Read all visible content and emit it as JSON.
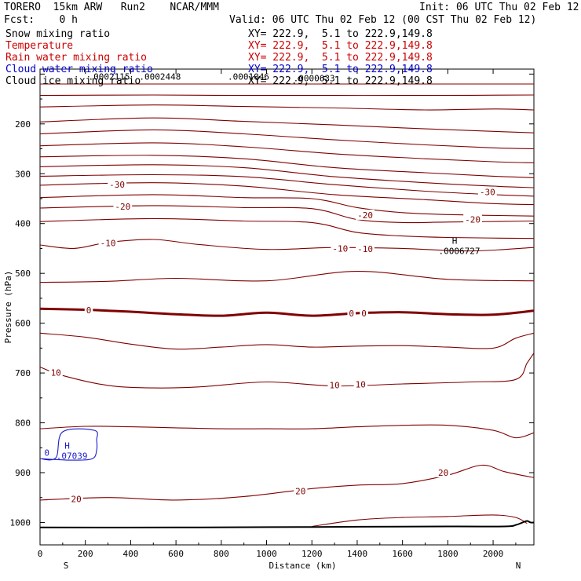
{
  "header": {
    "model": "TORERO  15km ARW   Run2    NCAR/MMM",
    "init": "Init: 06 UTC Thu 02 Feb 12",
    "fcst": "Fcst:    0 h",
    "valid": "Valid: 06 UTC Thu 02 Feb 12 (00 CST Thu 02 Feb 12)"
  },
  "fields": [
    {
      "name": "Snow mixing ratio",
      "range": "XY= 222.9,  5.1 to 222.9,149.8",
      "color": "#000000"
    },
    {
      "name": "Temperature",
      "range": "XY= 222.9,  5.1 to 222.9,149.8",
      "color": "#cc0000"
    },
    {
      "name": "Rain water mixing ratio",
      "range": "XY= 222.9,  5.1 to 222.9,149.8",
      "color": "#cc0000"
    },
    {
      "name": "Cloud water mixing ratio",
      "range": "XY= 222.9,  5.1 to 222.9,149.8",
      "color": "#0000cc"
    },
    {
      "name": "Cloud ice mixing ratio",
      "range": "XY= 222.9,  5.1 to 222.9,149.8",
      "color": "#000000"
    }
  ],
  "colors": {
    "temperature": "#800000",
    "cloud_water": "#1a1acc",
    "terrain": "#000000",
    "marker": "#000000"
  },
  "chart_data": {
    "type": "line",
    "title": "Cross section",
    "xlabel": "Distance (km)",
    "ylabel": "Pressure (hPa)",
    "xlim": [
      0,
      2180
    ],
    "ylim": [
      1045,
      90
    ],
    "x_ticks": [
      0,
      200,
      400,
      600,
      800,
      1000,
      1200,
      1400,
      1600,
      1800,
      2000
    ],
    "y_ticks": [
      100,
      200,
      300,
      400,
      500,
      600,
      700,
      800,
      900,
      1000
    ],
    "end_labels": {
      "left": "S",
      "right": "N"
    },
    "temperature_contours": [
      {
        "value": -75,
        "x": [
          0,
          400,
          800,
          1200,
          1600,
          2180
        ],
        "p": [
          120,
          120,
          120,
          120,
          120,
          120
        ]
      },
      {
        "value": -70,
        "x": [
          0,
          500,
          900,
          1300,
          1700,
          2180
        ],
        "p": [
          143,
          142,
          143,
          143,
          143,
          142
        ]
      },
      {
        "value": -65,
        "x": [
          0,
          500,
          900,
          1300,
          1700,
          2000,
          2180
        ],
        "p": [
          166,
          162,
          165,
          168,
          172,
          170,
          172
        ]
      },
      {
        "value": -60,
        "x": [
          0,
          500,
          900,
          1300,
          1700,
          2000,
          2180
        ],
        "p": [
          196,
          188,
          195,
          202,
          210,
          215,
          218
        ]
      },
      {
        "value": -55,
        "x": [
          0,
          500,
          900,
          1300,
          1700,
          2000,
          2180
        ],
        "p": [
          220,
          212,
          220,
          232,
          242,
          248,
          250
        ]
      },
      {
        "value": -50,
        "x": [
          0,
          500,
          900,
          1300,
          1700,
          2000,
          2180
        ],
        "p": [
          244,
          238,
          246,
          260,
          270,
          276,
          278
        ]
      },
      {
        "value": -45,
        "x": [
          0,
          500,
          900,
          1300,
          1700,
          2000,
          2180
        ],
        "p": [
          266,
          263,
          270,
          288,
          298,
          305,
          308
        ]
      },
      {
        "value": -40,
        "x": [
          0,
          500,
          900,
          1300,
          1700,
          2000,
          2180
        ],
        "p": [
          286,
          282,
          288,
          306,
          318,
          325,
          328
        ]
      },
      {
        "value": -35,
        "x": [
          0,
          500,
          900,
          1300,
          1700,
          2000,
          2180
        ],
        "p": [
          305,
          302,
          306,
          322,
          335,
          342,
          345
        ]
      },
      {
        "value": -30,
        "x": [
          0,
          500,
          900,
          1300,
          1700,
          2000,
          2180
        ],
        "p": [
          323,
          318,
          325,
          342,
          352,
          360,
          362
        ]
      },
      {
        "value": -25,
        "x": [
          0,
          500,
          900,
          1200,
          1400,
          1600,
          1800,
          2180
        ],
        "p": [
          348,
          342,
          348,
          350,
          368,
          378,
          382,
          385
        ]
      },
      {
        "value": -20,
        "x": [
          0,
          500,
          900,
          1200,
          1400,
          1600,
          1800,
          2180
        ],
        "p": [
          369,
          364,
          368,
          370,
          392,
          398,
          397,
          395
        ]
      },
      {
        "value": -15,
        "x": [
          0,
          500,
          900,
          1200,
          1400,
          1600,
          1800,
          2180
        ],
        "p": [
          396,
          390,
          395,
          398,
          418,
          425,
          428,
          430
        ]
      },
      {
        "value": -10,
        "x": [
          0,
          150,
          300,
          500,
          700,
          1000,
          1300,
          1600,
          1900,
          2180
        ],
        "p": [
          443,
          450,
          438,
          432,
          442,
          452,
          448,
          450,
          455,
          448
        ]
      },
      {
        "value": -5,
        "x": [
          0,
          300,
          600,
          1000,
          1400,
          1800,
          2180
        ],
        "p": [
          518,
          516,
          510,
          515,
          496,
          512,
          515
        ]
      },
      {
        "value": 0,
        "x": [
          0,
          200,
          400,
          600,
          800,
          1000,
          1200,
          1400,
          1600,
          1800,
          2000,
          2180
        ],
        "p": [
          571,
          573,
          577,
          582,
          585,
          579,
          585,
          580,
          578,
          582,
          583,
          575
        ]
      },
      {
        "value": 5,
        "x": [
          0,
          200,
          400,
          600,
          800,
          1000,
          1200,
          1400,
          1600,
          1800,
          2000,
          2100,
          2180
        ],
        "p": [
          620,
          628,
          642,
          652,
          648,
          643,
          648,
          646,
          645,
          648,
          650,
          630,
          620
        ]
      },
      {
        "value": 10,
        "x": [
          0,
          100,
          300,
          500,
          700,
          1000,
          1300,
          1600,
          1900,
          2100,
          2150,
          2180
        ],
        "p": [
          688,
          705,
          725,
          730,
          728,
          718,
          726,
          722,
          718,
          713,
          680,
          660
        ]
      },
      {
        "value": 15,
        "x": [
          0,
          200,
          400,
          600,
          800,
          1000,
          1200,
          1400,
          1600,
          1800,
          2000,
          2100,
          2180
        ],
        "p": [
          812,
          807,
          808,
          810,
          812,
          812,
          812,
          808,
          805,
          805,
          815,
          830,
          820
        ]
      },
      {
        "value": 20,
        "x": [
          0,
          300,
          600,
          900,
          1200,
          1400,
          1600,
          1800,
          1950,
          2050,
          2180
        ],
        "p": [
          955,
          950,
          955,
          948,
          932,
          925,
          922,
          905,
          885,
          898,
          910
        ]
      },
      {
        "value": 25,
        "x": [
          1200,
          1400,
          1600,
          1800,
          2000,
          2100,
          2150
        ],
        "p": [
          1008,
          995,
          990,
          988,
          985,
          990,
          1002
        ]
      }
    ],
    "temperature_labels": [
      {
        "text": "-30",
        "x": 340,
        "p": 322
      },
      {
        "text": "-30",
        "x": 1975,
        "p": 337
      },
      {
        "text": "-20",
        "x": 365,
        "p": 366
      },
      {
        "text": "-20",
        "x": 1435,
        "p": 383
      },
      {
        "text": "-20",
        "x": 1910,
        "p": 392
      },
      {
        "text": "-10",
        "x": 300,
        "p": 439
      },
      {
        "text": "-10",
        "x": 1325,
        "p": 450
      },
      {
        "text": "-10",
        "x": 1435,
        "p": 451
      },
      {
        "text": "0",
        "x": 215,
        "p": 574
      },
      {
        "text": "0",
        "x": 1375,
        "p": 580
      },
      {
        "text": "0",
        "x": 1430,
        "p": 580
      },
      {
        "text": "10",
        "x": 70,
        "p": 699
      },
      {
        "text": "10",
        "x": 1300,
        "p": 724
      },
      {
        "text": "10",
        "x": 1415,
        "p": 723
      },
      {
        "text": "20",
        "x": 160,
        "p": 953
      },
      {
        "text": "20",
        "x": 1150,
        "p": 937
      },
      {
        "text": "20",
        "x": 1780,
        "p": 900
      }
    ],
    "cloud_water_contours": [
      {
        "value": 0,
        "x": [
          0,
          140,
          230,
          250,
          250,
          240,
          100,
          70,
          0
        ],
        "p": [
          872,
          875,
          872,
          855,
          835,
          815,
          818,
          870,
          872
        ]
      }
    ],
    "cloud_water_labels": [
      {
        "text": "0",
        "x": 30,
        "p": 860
      }
    ],
    "cloud_water_max": {
      "label": "H",
      "value": ".07039",
      "x": 120,
      "p": 852
    },
    "temperature_max": {
      "label": "H",
      "value": ".0006727",
      "x": 1830,
      "p": 441
    },
    "snow_annotations": [
      {
        "text": ".0002115",
        "x": 305,
        "p": 105
      },
      {
        "text": ".0002448",
        "x": 530,
        "p": 105
      },
      {
        "text": ".0001046",
        "x": 920,
        "p": 105
      },
      {
        "text": ".0000633",
        "x": 1210,
        "p": 108
      }
    ],
    "terrain": {
      "x": [
        0,
        600,
        1200,
        1800,
        2050,
        2100,
        2130,
        2150,
        2165,
        2180
      ],
      "p": [
        1010,
        1010,
        1009,
        1008,
        1008,
        1005,
        1000,
        997,
        1000,
        1000
      ]
    }
  }
}
